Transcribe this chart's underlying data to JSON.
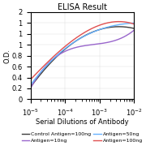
{
  "title": "ELISA Result",
  "ylabel": "O.D.",
  "xlabel": "Serial Dilutions of Antibody",
  "x_values": [
    0.01,
    0.001,
    0.0001,
    1e-05
  ],
  "lines": [
    {
      "label": "Control Antigen=100ng",
      "color": "#3d3d3d",
      "y_values": [
        1.3,
        1.28,
        0.92,
        0.22
      ]
    },
    {
      "label": "Antigen=10ng",
      "color": "#9966cc",
      "y_values": [
        1.27,
        1.02,
        0.88,
        0.2
      ]
    },
    {
      "label": "Antigen=50ng",
      "color": "#66b2ff",
      "y_values": [
        1.4,
        1.28,
        0.93,
        0.26
      ]
    },
    {
      "label": "Antigen=100ng",
      "color": "#e05050",
      "y_values": [
        1.38,
        1.36,
        0.97,
        0.36
      ]
    }
  ],
  "ylim": [
    0,
    1.6
  ],
  "yticks": [
    0,
    0.2,
    0.4,
    0.6,
    0.8,
    1.0,
    1.2,
    1.4,
    1.6
  ],
  "background_color": "#ffffff",
  "title_fontsize": 7,
  "axis_fontsize": 6,
  "legend_fontsize": 4.5
}
